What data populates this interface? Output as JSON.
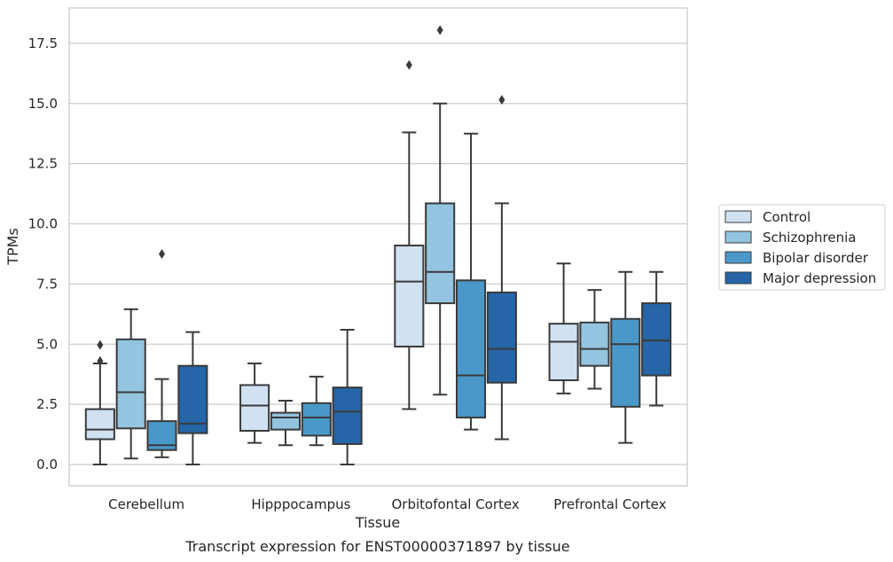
{
  "chart_data": {
    "type": "boxplot",
    "caption": "Transcript expression for ENST00000371897 by tissue",
    "xlabel": "Tissue",
    "ylabel": "TPMs",
    "ylim": [
      -0.8,
      18.9
    ],
    "yticks": [
      0.0,
      2.5,
      5.0,
      7.5,
      10.0,
      12.5,
      15.0,
      17.5
    ],
    "ytick_labels": [
      "0.0",
      "2.5",
      "5.0",
      "7.5",
      "10.0",
      "12.5",
      "15.0",
      "17.5"
    ],
    "grid": "horizontal",
    "legend_position": "right",
    "categories": [
      "Cerebellum",
      "Hipppocampus",
      "Orbitofontal Cortex",
      "Prefrontal Cortex"
    ],
    "series": [
      {
        "name": "Control",
        "color": "#d0e1f2",
        "boxes": [
          {
            "whislo": 0.0,
            "q1": 1.05,
            "med": 1.45,
            "q3": 2.3,
            "whishi": 4.2,
            "fliers": [
              4.3,
              4.97
            ]
          },
          {
            "whislo": 0.9,
            "q1": 1.4,
            "med": 2.45,
            "q3": 3.3,
            "whishi": 4.2,
            "fliers": []
          },
          {
            "whislo": 2.3,
            "q1": 4.9,
            "med": 7.6,
            "q3": 9.1,
            "whishi": 13.8,
            "fliers": [
              16.6
            ]
          },
          {
            "whislo": 2.95,
            "q1": 3.5,
            "med": 5.1,
            "q3": 5.85,
            "whishi": 8.35,
            "fliers": []
          }
        ]
      },
      {
        "name": "Schizophrenia",
        "color": "#94c4df",
        "boxes": [
          {
            "whislo": 0.25,
            "q1": 1.5,
            "med": 3.0,
            "q3": 5.2,
            "whishi": 6.45,
            "fliers": []
          },
          {
            "whislo": 0.8,
            "q1": 1.45,
            "med": 1.95,
            "q3": 2.15,
            "whishi": 2.65,
            "fliers": []
          },
          {
            "whislo": 2.9,
            "q1": 6.7,
            "med": 8.0,
            "q3": 10.85,
            "whishi": 15.0,
            "fliers": [
              18.05
            ]
          },
          {
            "whislo": 3.15,
            "q1": 4.1,
            "med": 4.8,
            "q3": 5.9,
            "whishi": 7.25,
            "fliers": []
          }
        ]
      },
      {
        "name": "Bipolar disorder",
        "color": "#4a98c9",
        "boxes": [
          {
            "whislo": 0.3,
            "q1": 0.6,
            "med": 0.8,
            "q3": 1.8,
            "whishi": 3.55,
            "fliers": [
              8.75
            ]
          },
          {
            "whislo": 0.8,
            "q1": 1.2,
            "med": 1.95,
            "q3": 2.55,
            "whishi": 3.65,
            "fliers": []
          },
          {
            "whislo": 1.45,
            "q1": 1.95,
            "med": 3.7,
            "q3": 7.65,
            "whishi": 13.75,
            "fliers": []
          },
          {
            "whislo": 0.9,
            "q1": 2.4,
            "med": 5.0,
            "q3": 6.05,
            "whishi": 8.0,
            "fliers": []
          }
        ]
      },
      {
        "name": "Major depression",
        "color": "#2565a8",
        "boxes": [
          {
            "whislo": 0.0,
            "q1": 1.3,
            "med": 1.7,
            "q3": 4.1,
            "whishi": 5.5,
            "fliers": []
          },
          {
            "whislo": 0.0,
            "q1": 0.85,
            "med": 2.2,
            "q3": 3.2,
            "whishi": 5.6,
            "fliers": []
          },
          {
            "whislo": 1.05,
            "q1": 3.4,
            "med": 4.8,
            "q3": 7.15,
            "whishi": 10.85,
            "fliers": [
              15.15
            ]
          },
          {
            "whislo": 2.45,
            "q1": 3.7,
            "med": 5.15,
            "q3": 6.7,
            "whishi": 8.0,
            "fliers": []
          }
        ]
      }
    ]
  }
}
